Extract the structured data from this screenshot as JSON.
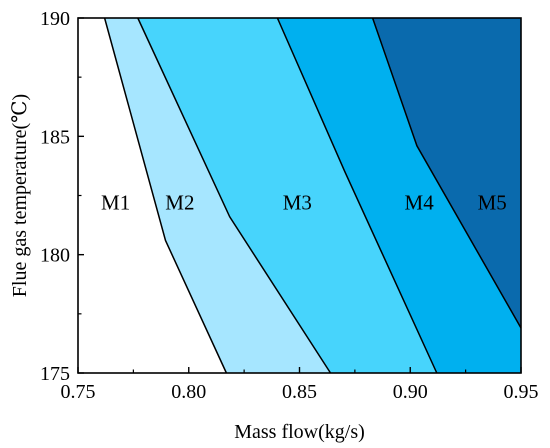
{
  "chart_data": {
    "type": "area",
    "title": "",
    "xlabel": "Mass flow(kg/s)",
    "ylabel": "Flue gas temperature(℃)",
    "xlim": [
      0.75,
      0.95
    ],
    "ylim": [
      175,
      190
    ],
    "x_ticks": [
      0.75,
      0.8,
      0.85,
      0.9,
      0.95
    ],
    "x_tick_labels": [
      "0.75",
      "0.80",
      "0.85",
      "0.90",
      "0.95"
    ],
    "y_ticks": [
      175,
      180,
      185,
      190
    ],
    "y_tick_labels": [
      "175",
      "180",
      "185",
      "190"
    ],
    "grid": false,
    "legend": "none",
    "regions": [
      {
        "label": "M1",
        "color": "#ffffff",
        "label_at": [
          0.767,
          182.2
        ]
      },
      {
        "label": "M2",
        "color": "#a6e6ff",
        "label_at": [
          0.796,
          182.2
        ]
      },
      {
        "label": "M3",
        "color": "#47d4fc",
        "label_at": [
          0.849,
          182.2
        ]
      },
      {
        "label": "M4",
        "color": "#00b0ef",
        "label_at": [
          0.904,
          182.2
        ]
      },
      {
        "label": "M5",
        "color": "#0a6aad",
        "label_at": [
          0.937,
          182.2
        ]
      }
    ],
    "boundaries": [
      {
        "between": "M1-M2",
        "points": [
          [
            0.762,
            190
          ],
          [
            0.7895,
            180.6
          ],
          [
            0.817,
            175
          ]
        ]
      },
      {
        "between": "M2-M3",
        "points": [
          [
            0.777,
            190
          ],
          [
            0.8185,
            181.6
          ],
          [
            0.864,
            175
          ]
        ]
      },
      {
        "between": "M3-M4",
        "points": [
          [
            0.84,
            190
          ],
          [
            0.8705,
            183.5
          ],
          [
            0.912,
            175
          ]
        ]
      },
      {
        "between": "M4-M5",
        "points": [
          [
            0.883,
            190
          ],
          [
            0.903,
            184.6
          ],
          [
            0.95,
            176.9
          ]
        ]
      }
    ],
    "colors": {
      "axis": "#000000",
      "boundary": "#000000"
    }
  }
}
